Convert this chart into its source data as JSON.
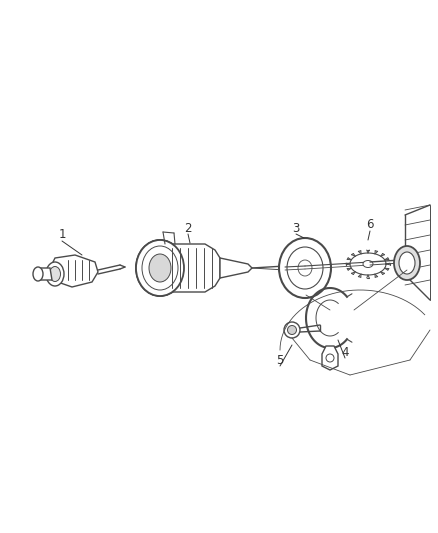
{
  "background_color": "#ffffff",
  "line_color": "#4a4a4a",
  "line_width": 1.0,
  "label_color": "#333333",
  "label_fontsize": 8.5,
  "fig_width": 4.38,
  "fig_height": 5.33,
  "dpi": 100
}
